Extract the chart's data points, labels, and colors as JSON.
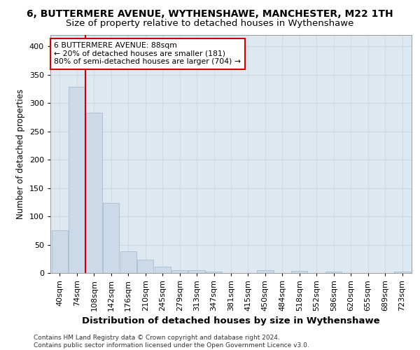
{
  "title": "6, BUTTERMERE AVENUE, WYTHENSHAWE, MANCHESTER, M22 1TH",
  "subtitle": "Size of property relative to detached houses in Wythenshawe",
  "xlabel": "Distribution of detached houses by size in Wythenshawe",
  "ylabel": "Number of detached properties",
  "footnote": "Contains HM Land Registry data © Crown copyright and database right 2024.\nContains public sector information licensed under the Open Government Licence v3.0.",
  "bar_labels": [
    "40sqm",
    "74sqm",
    "108sqm",
    "142sqm",
    "176sqm",
    "210sqm",
    "245sqm",
    "279sqm",
    "313sqm",
    "347sqm",
    "381sqm",
    "415sqm",
    "450sqm",
    "484sqm",
    "518sqm",
    "552sqm",
    "586sqm",
    "620sqm",
    "655sqm",
    "689sqm",
    "723sqm"
  ],
  "bar_values": [
    75,
    328,
    283,
    123,
    38,
    24,
    11,
    5,
    5,
    3,
    0,
    0,
    5,
    0,
    4,
    0,
    3,
    0,
    0,
    0,
    3
  ],
  "bar_color": "#ccd9e8",
  "bar_edge_color": "#a8bdd0",
  "vline_x": 1.5,
  "vline_color": "#cc0000",
  "annotation_line1": "6 BUTTERMERE AVENUE: 88sqm",
  "annotation_line2": "← 20% of detached houses are smaller (181)",
  "annotation_line3": "80% of semi-detached houses are larger (704) →",
  "annotation_box_color": "#ffffff",
  "annotation_box_edge_color": "#cc0000",
  "ylim": [
    0,
    420
  ],
  "yticks": [
    0,
    50,
    100,
    150,
    200,
    250,
    300,
    350,
    400
  ],
  "grid_color": "#c8d4de",
  "background_color": "#dde8f0",
  "title_fontsize": 10,
  "subtitle_fontsize": 9.5,
  "xlabel_fontsize": 9.5,
  "ylabel_fontsize": 8.5,
  "tick_fontsize": 8,
  "footnote_fontsize": 6.5
}
